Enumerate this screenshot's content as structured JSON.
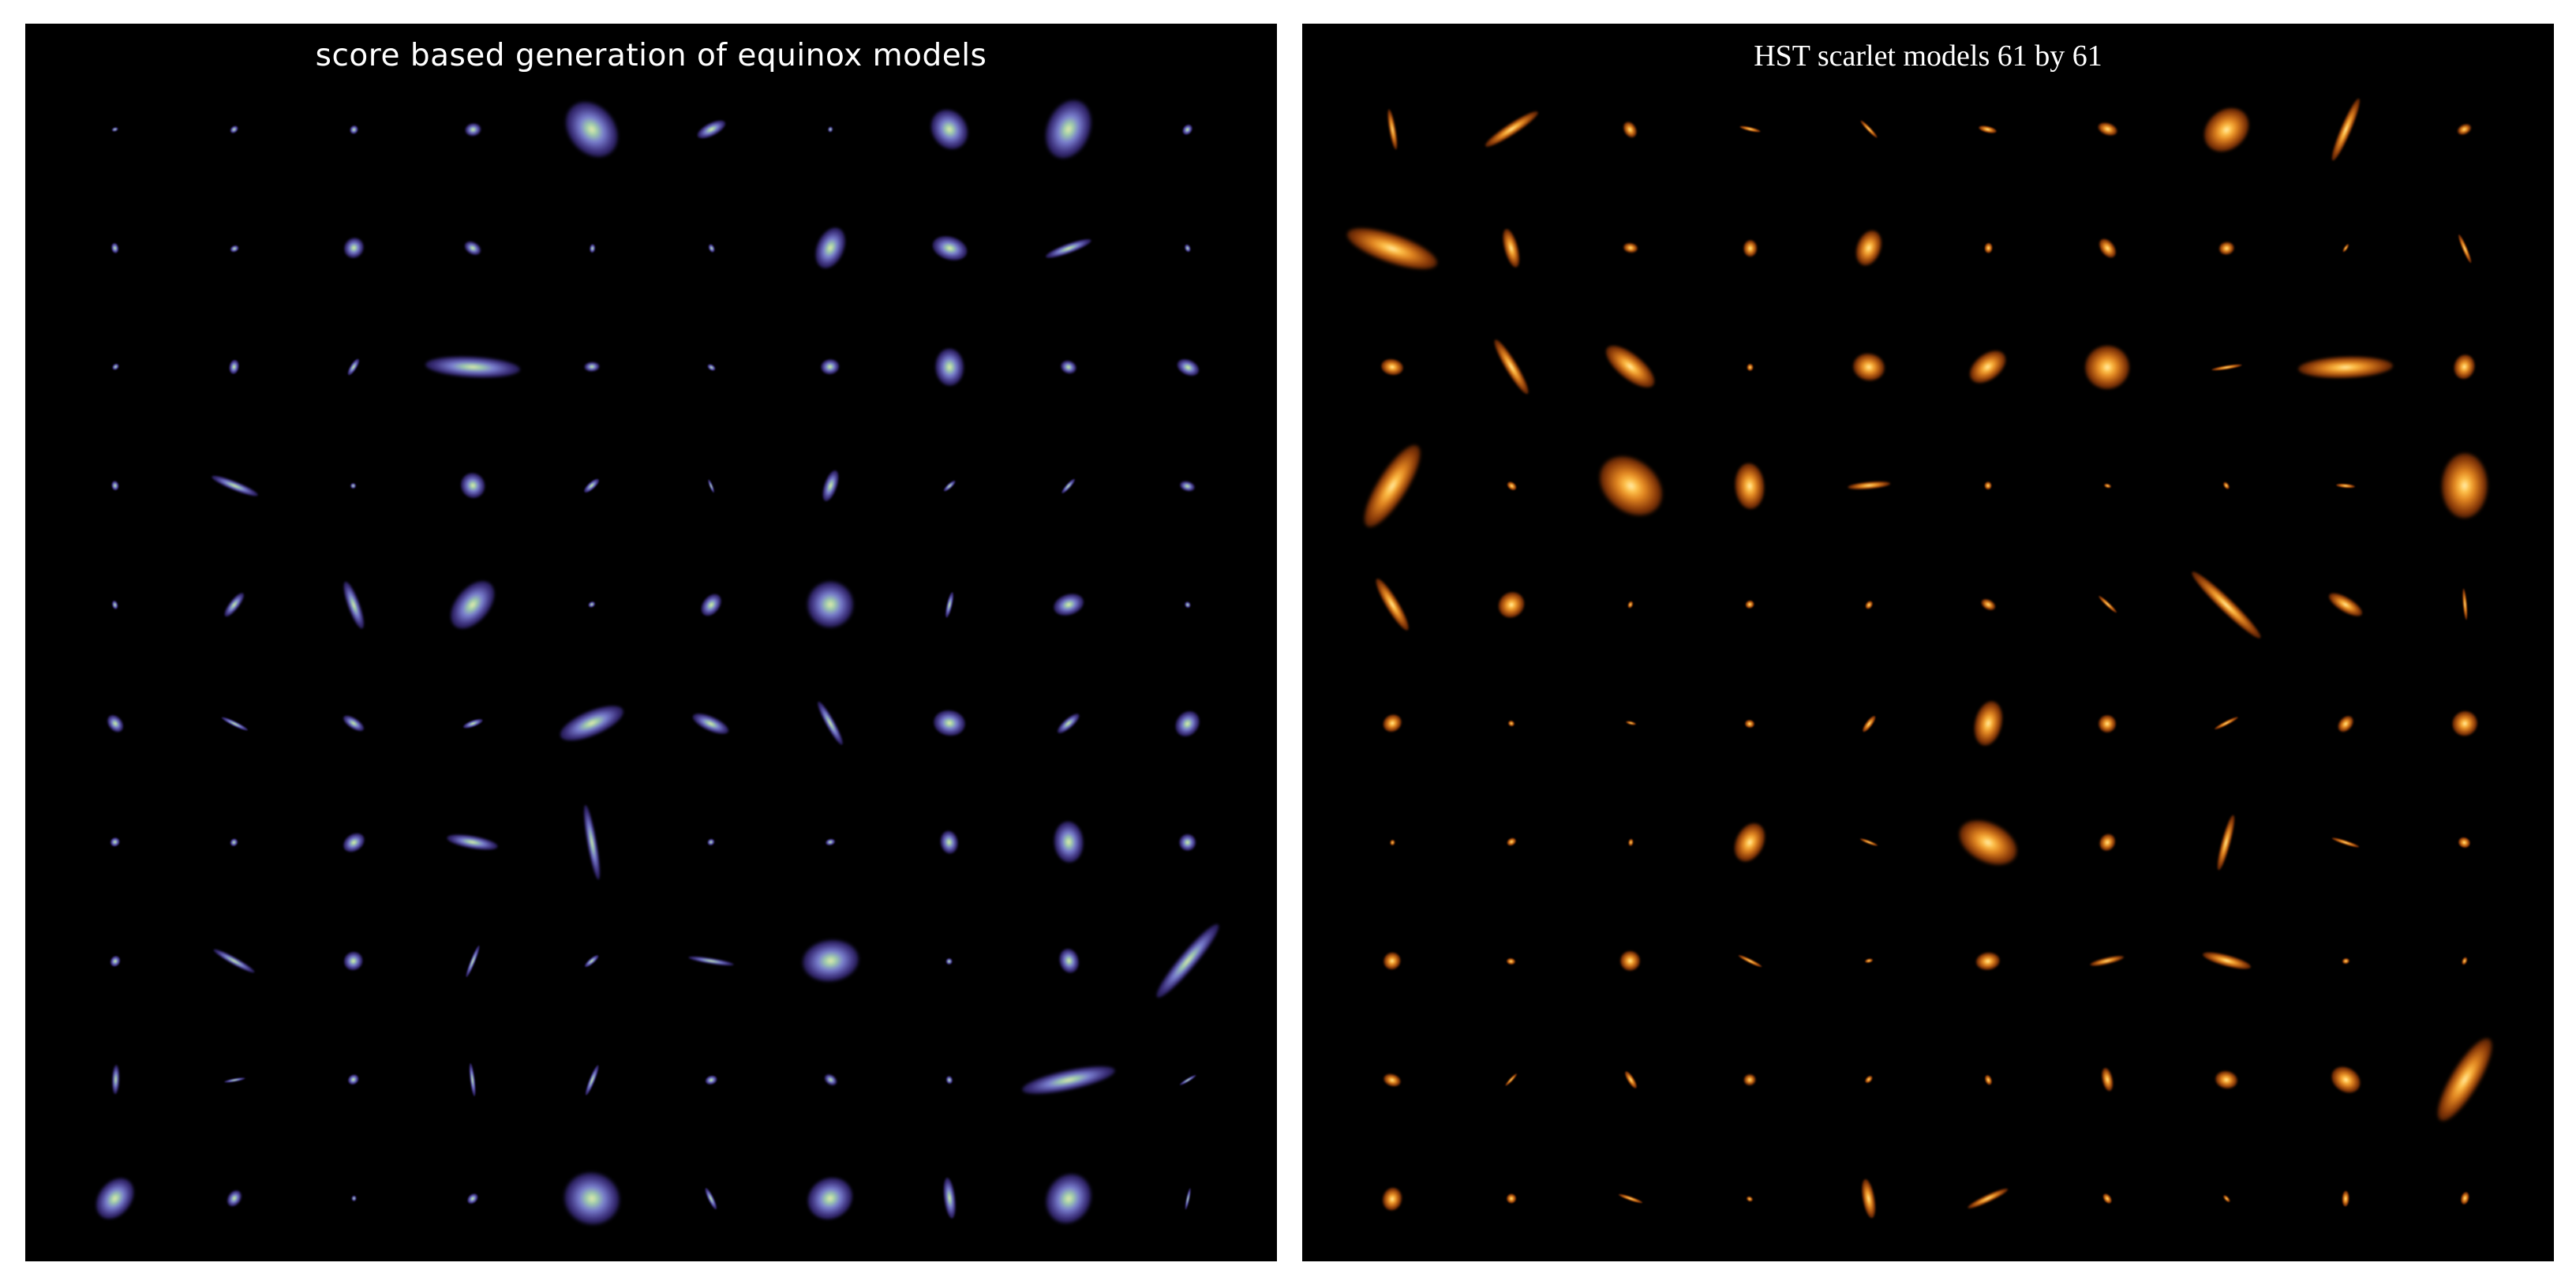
{
  "panels": [
    {
      "id": "equinox",
      "title": "score based generation of equinox models",
      "colormap": [
        "#f4f0b0",
        "#9fd0a8",
        "#7a7fd0",
        "#3b2f7a",
        "#100a30"
      ],
      "rows": 10,
      "cols": 10
    },
    {
      "id": "hst",
      "title": "HST scarlet models 61 by 61",
      "colormap": [
        "#fff6c0",
        "#ffc24a",
        "#e08420",
        "#8a3a08",
        "#2a0c02"
      ],
      "rows": 10,
      "cols": 10
    }
  ]
}
